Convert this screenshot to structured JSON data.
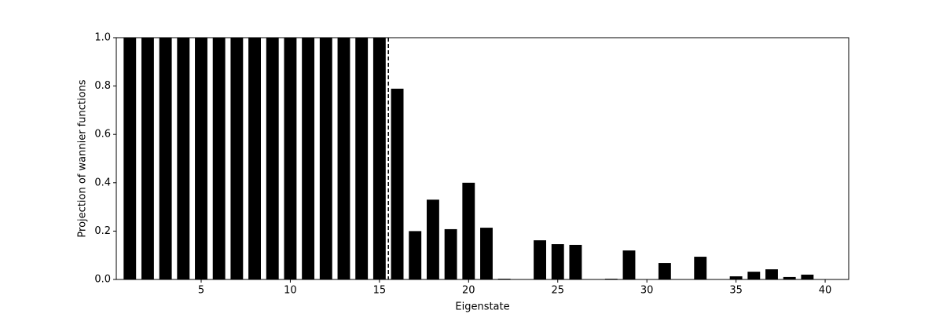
{
  "chart_data": {
    "type": "bar",
    "xlabel": "Eigenstate",
    "ylabel": "Projection of wannier functions",
    "x": [
      1,
      2,
      3,
      4,
      5,
      6,
      7,
      8,
      9,
      10,
      11,
      12,
      13,
      14,
      15,
      16,
      17,
      18,
      19,
      20,
      21,
      22,
      23,
      24,
      25,
      26,
      27,
      28,
      29,
      30,
      31,
      32,
      33,
      34,
      35,
      36,
      37,
      38,
      39,
      40
    ],
    "values": [
      1,
      1,
      1,
      1,
      1,
      1,
      1,
      1,
      1,
      1,
      1,
      1,
      1,
      1,
      1,
      0.789,
      0.2,
      0.33,
      0.208,
      0.4,
      0.214,
      0.003,
      0.001,
      0.162,
      0.146,
      0.143,
      0.001,
      0.003,
      0.12,
      0.001,
      0.068,
      0.001,
      0.094,
      0.001,
      0.013,
      0.032,
      0.042,
      0.01,
      0.02,
      0.001
    ],
    "color": "#000000",
    "xlim": [
      0.24,
      41.32
    ],
    "ylim": [
      0,
      1
    ],
    "xticks": [
      5,
      10,
      15,
      20,
      25,
      30,
      35,
      40
    ],
    "yticks": [
      {
        "value": 0,
        "label": "0.0"
      },
      0.2,
      0.4,
      0.6,
      0.8,
      {
        "value": 1,
        "label": "1.0"
      }
    ],
    "vline": 15.5,
    "grid": false
  }
}
